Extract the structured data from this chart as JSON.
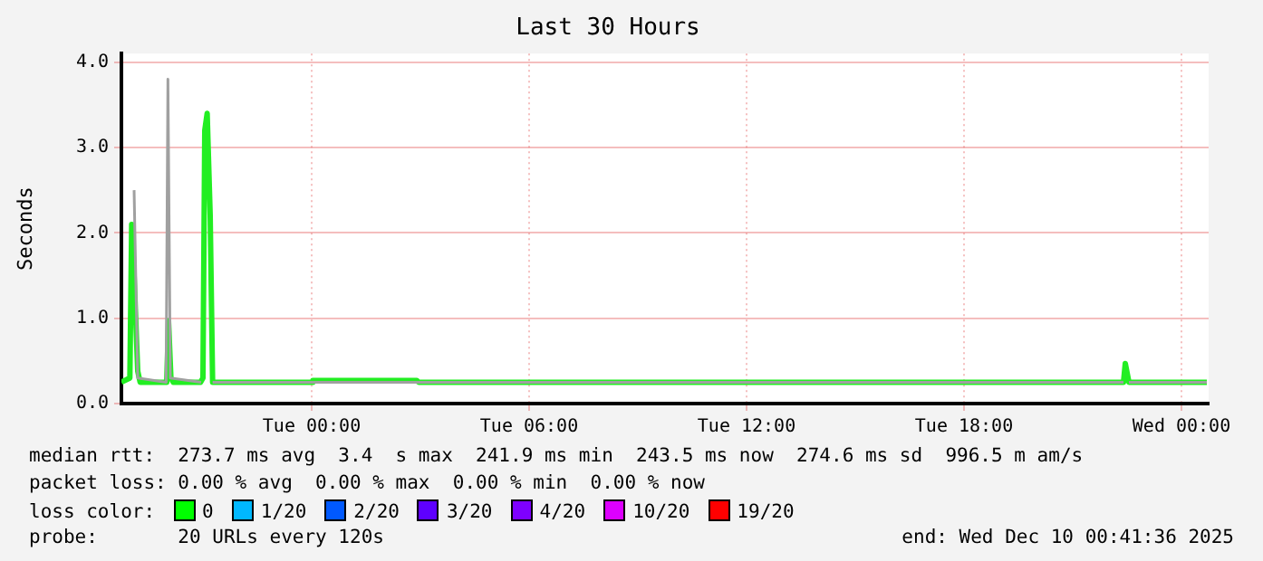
{
  "chart_data": {
    "type": "line",
    "title": "Last 30 Hours",
    "ylabel": "Seconds",
    "xlim": [
      "2025-12-08T18:45",
      "2025-12-10T00:45"
    ],
    "xticks": [
      {
        "value": "2025-12-09T00:00",
        "label": "Tue 00:00"
      },
      {
        "value": "2025-12-09T06:00",
        "label": "Tue 06:00"
      },
      {
        "value": "2025-12-09T12:00",
        "label": "Tue 12:00"
      },
      {
        "value": "2025-12-09T18:00",
        "label": "Tue 18:00"
      },
      {
        "value": "2025-12-10T00:00",
        "label": "Wed 00:00"
      }
    ],
    "ylim": [
      0,
      4.1
    ],
    "yticks": [
      {
        "value": 0,
        "label": "0.0"
      },
      {
        "value": 1,
        "label": "1.0"
      },
      {
        "value": 2,
        "label": "2.0"
      },
      {
        "value": 3,
        "label": "3.0"
      },
      {
        "value": 4,
        "label": "4.0"
      }
    ],
    "grid": true,
    "legend": false,
    "marker": "none",
    "line_style": "solid",
    "series": [
      {
        "color": "#a0a0a0",
        "x": [
          "2025-12-08T19:06",
          "2025-12-08T19:12",
          "2025-12-08T19:59",
          "2025-12-08T20:02",
          "2025-12-08T20:06",
          "2025-12-08T20:57",
          "2025-12-08T21:00",
          "2025-12-08T21:12",
          "2025-12-08T21:16",
          "2025-12-09T22:24",
          "2025-12-09T22:27",
          "2025-12-09T22:33",
          "2025-12-10T00:42"
        ],
        "values": [
          2.5,
          0.3,
          0.25,
          3.8,
          0.3,
          0.25,
          null,
          null,
          0.25,
          0.25,
          null,
          0.25,
          0.25
        ]
      },
      {
        "color": "#22ee22",
        "x": [
          "2025-12-08T18:45",
          "2025-12-08T18:59",
          "2025-12-08T19:02",
          "2025-12-08T19:06",
          "2025-12-08T19:12",
          "2025-12-08T19:16",
          "2025-12-08T20:00",
          "2025-12-08T20:03",
          "2025-12-08T20:07",
          "2025-12-08T20:11",
          "2025-12-08T20:56",
          "2025-12-08T21:00",
          "2025-12-08T21:03",
          "2025-12-08T21:07",
          "2025-12-08T21:12",
          "2025-12-08T21:16",
          "2025-12-09T00:00",
          "2025-12-09T00:02",
          "2025-12-09T02:54",
          "2025-12-09T02:57",
          "2025-12-09T22:24",
          "2025-12-09T22:27",
          "2025-12-09T22:33",
          "2025-12-10T00:42"
        ],
        "values": [
          0.25,
          0.3,
          2.1,
          1.5,
          0.38,
          0.25,
          0.25,
          0.97,
          0.3,
          0.25,
          0.25,
          0.3,
          3.2,
          3.4,
          2.2,
          0.25,
          0.25,
          0.27,
          0.27,
          0.25,
          0.25,
          0.47,
          0.25,
          0.25
        ]
      }
    ],
    "annotations": [
      "median rtt:  273.7 ms avg  3.4  s max  241.9 ms min  243.5 ms now  274.6 ms sd  996.5 m am/s",
      "packet loss: 0.00 % avg  0.00 % max  0.00 % min  0.00 % now",
      "loss color:",
      "0",
      "1/20",
      "2/20",
      "3/20",
      "4/20",
      "10/20",
      "19/20",
      "probe:       20 URLs every 120s",
      "end: Wed Dec 10 00:41:36 2025"
    ]
  }
}
